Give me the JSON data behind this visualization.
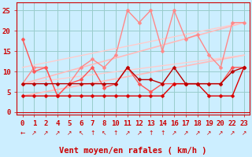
{
  "xlabel": "Vent moyen/en rafales ( km/h )",
  "bg_color": "#cceeff",
  "grid_color": "#99cccc",
  "x_positions": [
    0,
    1,
    2,
    3,
    4,
    5,
    6,
    7,
    8,
    9,
    10,
    11,
    12,
    13,
    14,
    15,
    16,
    17,
    18,
    19
  ],
  "x_labels": [
    "0",
    "1",
    "2",
    "4",
    "5",
    "6",
    "7",
    "8",
    "10",
    "11",
    "12",
    "13",
    "14",
    "16",
    "17",
    "18",
    "19",
    "20",
    "22",
    "23"
  ],
  "yticks": [
    0,
    5,
    10,
    15,
    20,
    25
  ],
  "ylim": [
    -0.5,
    27
  ],
  "xlim": [
    -0.5,
    19.5
  ],
  "series": [
    {
      "x": [
        0,
        1,
        2,
        3,
        4,
        5,
        6,
        7,
        8,
        9,
        10,
        11,
        12,
        13,
        14,
        15,
        16,
        17,
        18,
        19
      ],
      "y": [
        4,
        4,
        4,
        4,
        4,
        4,
        4,
        4,
        4,
        4,
        4,
        4,
        4,
        7,
        7,
        7,
        4,
        4,
        4,
        11
      ],
      "color": "#dd0000",
      "lw": 1.0,
      "marker": "D",
      "ms": 2.5,
      "zorder": 6
    },
    {
      "x": [
        0,
        1,
        2,
        3,
        4,
        5,
        6,
        7,
        8,
        9,
        10,
        11,
        12,
        13,
        14,
        15,
        16,
        17,
        18,
        19
      ],
      "y": [
        7,
        7,
        7,
        7,
        7,
        7,
        7,
        7,
        7,
        11,
        8,
        8,
        7,
        11,
        7,
        7,
        7,
        7,
        10,
        11
      ],
      "color": "#bb0000",
      "lw": 1.0,
      "marker": "D",
      "ms": 2.5,
      "zorder": 6
    },
    {
      "x": [
        0,
        1,
        2,
        3,
        4,
        5,
        6,
        7,
        8,
        9,
        10,
        11,
        12,
        13,
        14,
        15,
        16,
        17,
        18,
        19
      ],
      "y": [
        18,
        10,
        11,
        4,
        7,
        8,
        11,
        6,
        7,
        11,
        7,
        5,
        7,
        7,
        7,
        7,
        7,
        7,
        11,
        11
      ],
      "color": "#ff5555",
      "lw": 1.0,
      "marker": "D",
      "ms": 2.5,
      "zorder": 5
    },
    {
      "x": [
        0,
        1,
        2,
        3,
        4,
        5,
        6,
        7,
        8,
        9,
        10,
        11,
        12,
        13,
        14,
        15,
        16,
        17,
        18,
        19
      ],
      "y": [
        7,
        11,
        11,
        4,
        7,
        11,
        13,
        11,
        14,
        25,
        22,
        25,
        15,
        25,
        18,
        19,
        14,
        11,
        22,
        22
      ],
      "color": "#ff8888",
      "lw": 1.0,
      "marker": "D",
      "ms": 2.5,
      "zorder": 4
    },
    {
      "x": [
        0,
        19
      ],
      "y": [
        7,
        22
      ],
      "color": "#ffbbbb",
      "lw": 1.2,
      "marker": null,
      "ms": 0,
      "zorder": 2
    },
    {
      "x": [
        0,
        19
      ],
      "y": [
        4,
        14
      ],
      "color": "#ffbbbb",
      "lw": 1.2,
      "marker": null,
      "ms": 0,
      "zorder": 2
    },
    {
      "x": [
        0,
        19
      ],
      "y": [
        11,
        22
      ],
      "color": "#ffcccc",
      "lw": 1.0,
      "marker": null,
      "ms": 0,
      "zorder": 2
    },
    {
      "x": [
        0,
        19
      ],
      "y": [
        7,
        14
      ],
      "color": "#ffcccc",
      "lw": 1.0,
      "marker": null,
      "ms": 0,
      "zorder": 2
    }
  ],
  "arrow_symbols": [
    "←",
    "↗",
    "↗",
    "↗",
    "↗",
    "↖",
    "↑",
    "↖",
    "↑",
    "↗",
    "↗",
    "↑",
    "↑",
    "↗",
    "↗",
    "↗",
    "↗",
    "↗",
    "↗",
    "↗"
  ],
  "axis_color": "#cc0000",
  "tick_color": "#cc0000",
  "xlabel_color": "#cc0000",
  "tick_fontsize": 6.5,
  "xlabel_fontsize": 7.5
}
